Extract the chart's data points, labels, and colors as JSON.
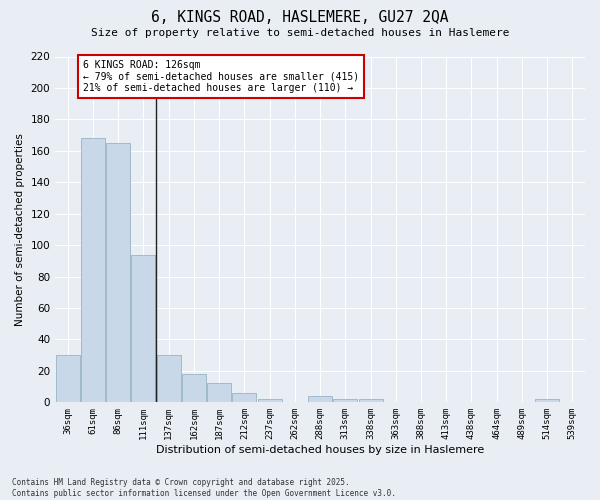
{
  "title": "6, KINGS ROAD, HASLEMERE, GU27 2QA",
  "subtitle": "Size of property relative to semi-detached houses in Haslemere",
  "xlabel": "Distribution of semi-detached houses by size in Haslemere",
  "ylabel": "Number of semi-detached properties",
  "bar_color": "#c8d8e8",
  "bar_edge_color": "#8aaabb",
  "background_color": "#e8eef4",
  "grid_color": "#ffffff",
  "annotation_box_edgecolor": "#cc0000",
  "annotation_title": "6 KINGS ROAD: 126sqm",
  "annotation_line1": "← 79% of semi-detached houses are smaller (415)",
  "annotation_line2": "21% of semi-detached houses are larger (110) →",
  "categories": [
    "36sqm",
    "61sqm",
    "86sqm",
    "111sqm",
    "137sqm",
    "162sqm",
    "187sqm",
    "212sqm",
    "237sqm",
    "262sqm",
    "288sqm",
    "313sqm",
    "338sqm",
    "363sqm",
    "388sqm",
    "413sqm",
    "438sqm",
    "464sqm",
    "489sqm",
    "514sqm",
    "539sqm"
  ],
  "values": [
    30,
    168,
    165,
    94,
    30,
    18,
    12,
    6,
    2,
    0,
    4,
    2,
    2,
    0,
    0,
    0,
    0,
    0,
    0,
    2,
    0
  ],
  "ylim": [
    0,
    220
  ],
  "yticks": [
    0,
    20,
    40,
    60,
    80,
    100,
    120,
    140,
    160,
    180,
    200,
    220
  ],
  "vline_x_index": 3.5,
  "vline_color": "#222222",
  "footer_line1": "Contains HM Land Registry data © Crown copyright and database right 2025.",
  "footer_line2": "Contains public sector information licensed under the Open Government Licence v3.0."
}
